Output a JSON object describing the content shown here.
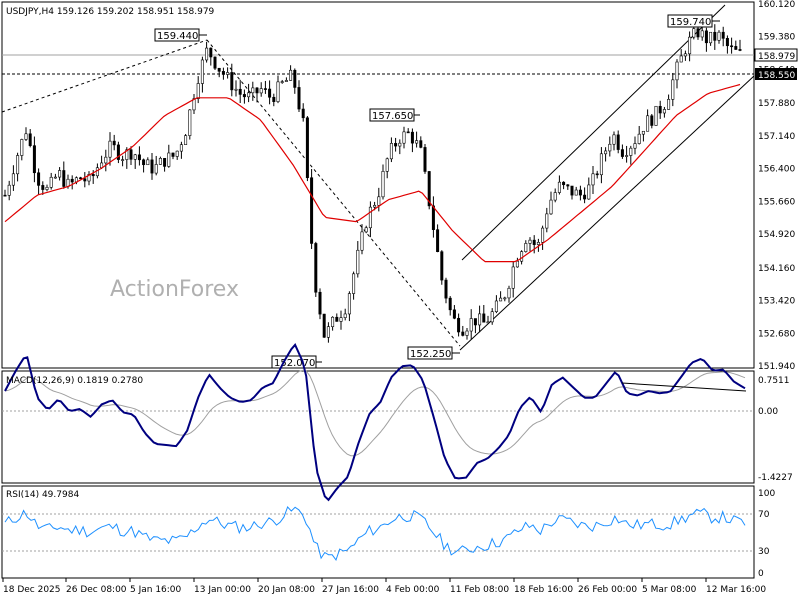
{
  "chart_data": [
    {
      "type": "candlestick",
      "symbol_line": "USDJPY,H4  159.126 159.202 158.951 158.979",
      "watermark": "ActionForex",
      "ylim": [
        151.94,
        160.12
      ],
      "y_ticks": [
        "160.120",
        "159.380",
        "158.640",
        "157.880",
        "157.140",
        "156.400",
        "155.660",
        "154.920",
        "154.160",
        "153.420",
        "152.680",
        "151.940"
      ],
      "current_price": "158.979",
      "support_level": "158.550",
      "annotations": [
        {
          "text": "159.440",
          "x": "13 Jan",
          "value": 159.44
        },
        {
          "text": "152.070",
          "x": "26 Jan",
          "value": 152.07
        },
        {
          "text": "157.650",
          "x": "5 Feb",
          "value": 157.65
        },
        {
          "text": "152.250",
          "x": "11 Feb",
          "value": 152.25
        },
        {
          "text": "159.740",
          "x": "10 Mar",
          "value": 159.74
        }
      ],
      "close_path": [
        [
          "18 Dec",
          155.8
        ],
        [
          "19 Dec",
          156.6
        ],
        [
          "20 Dec",
          157.3
        ],
        [
          "22 Dec",
          156.2
        ],
        [
          "23 Dec",
          155.9
        ],
        [
          "24 Dec",
          156.3
        ],
        [
          "25 Dec",
          156.0
        ],
        [
          "26 Dec",
          156.2
        ],
        [
          "29 Dec",
          156.1
        ],
        [
          "30 Dec",
          156.6
        ],
        [
          "31 Dec",
          156.9
        ],
        [
          "1 Jan",
          156.7
        ],
        [
          "2 Jan",
          156.8
        ],
        [
          "5 Jan",
          156.5
        ],
        [
          "6 Jan",
          156.4
        ],
        [
          "7 Jan",
          156.6
        ],
        [
          "8 Jan",
          156.7
        ],
        [
          "9 Jan",
          157.3
        ],
        [
          "12 Jan",
          158.4
        ],
        [
          "13 Jan",
          159.1
        ],
        [
          "14 Jan",
          158.7
        ],
        [
          "15 Jan",
          158.4
        ],
        [
          "16 Jan",
          158.1
        ],
        [
          "19 Jan",
          158.0
        ],
        [
          "20 Jan",
          158.2
        ],
        [
          "21 Jan",
          158.0
        ],
        [
          "22 Jan",
          158.3
        ],
        [
          "23 Jan",
          158.5
        ],
        [
          "24 Jan",
          157.4
        ],
        [
          "26 Jan",
          154.0
        ],
        [
          "27 Jan",
          152.6
        ],
        [
          "28 Jan",
          153.0
        ],
        [
          "29 Jan",
          153.3
        ],
        [
          "30 Jan",
          154.3
        ],
        [
          "1 Feb",
          155.3
        ],
        [
          "2 Feb",
          155.8
        ],
        [
          "3 Feb",
          156.7
        ],
        [
          "4 Feb",
          157.1
        ],
        [
          "5 Feb",
          157.2
        ],
        [
          "6 Feb",
          156.8
        ],
        [
          "8 Feb",
          155.4
        ],
        [
          "9 Feb",
          153.9
        ],
        [
          "10 Feb",
          153.0
        ],
        [
          "11 Feb",
          152.8
        ],
        [
          "12 Feb",
          153.0
        ],
        [
          "13 Feb",
          152.9
        ],
        [
          "14 Feb",
          153.2
        ],
        [
          "16 Feb",
          153.6
        ],
        [
          "17 Feb",
          154.4
        ],
        [
          "18 Feb",
          154.9
        ],
        [
          "19 Feb",
          154.6
        ],
        [
          "20 Feb",
          155.6
        ],
        [
          "23 Feb",
          156.0
        ],
        [
          "24 Feb",
          155.9
        ],
        [
          "25 Feb",
          155.8
        ],
        [
          "26 Feb",
          156.0
        ],
        [
          "27 Feb",
          156.6
        ],
        [
          "2 Mar",
          157.2
        ],
        [
          "3 Mar",
          156.8
        ],
        [
          "4 Mar",
          157.0
        ],
        [
          "5 Mar",
          157.4
        ],
        [
          "6 Mar",
          157.6
        ],
        [
          "8 Mar",
          157.9
        ],
        [
          "9 Mar",
          158.6
        ],
        [
          "10 Mar",
          159.2
        ],
        [
          "11 Mar",
          159.5
        ],
        [
          "12 Mar",
          159.3
        ],
        [
          "13 Mar",
          159.4
        ],
        [
          "14 Mar",
          159.1
        ],
        [
          "16 Mar",
          158.98
        ]
      ],
      "ma_path": [
        [
          "18 Dec",
          155.2
        ],
        [
          "25 Dec",
          155.8
        ],
        [
          "31 Dec",
          156.0
        ],
        [
          "7 Jan",
          156.4
        ],
        [
          "12 Jan",
          156.9
        ],
        [
          "14 Jan",
          157.6
        ],
        [
          "19 Jan",
          158.0
        ],
        [
          "22 Jan",
          158.0
        ],
        [
          "24 Jan",
          157.5
        ],
        [
          "27 Jan",
          156.5
        ],
        [
          "30 Jan",
          155.3
        ],
        [
          "3 Feb",
          155.2
        ],
        [
          "5 Feb",
          155.7
        ],
        [
          "8 Feb",
          155.9
        ],
        [
          "11 Feb",
          155.0
        ],
        [
          "14 Feb",
          154.3
        ],
        [
          "18 Feb",
          154.3
        ],
        [
          "23 Feb",
          154.8
        ],
        [
          "27 Feb",
          155.4
        ],
        [
          "4 Mar",
          156.0
        ],
        [
          "8 Mar",
          156.8
        ],
        [
          "11 Mar",
          157.6
        ],
        [
          "14 Mar",
          158.1
        ],
        [
          "16 Mar",
          158.3
        ]
      ]
    },
    {
      "type": "line",
      "title": "MACD(12,26,9) 0.1819 0.2780",
      "ylim": [
        -1.55,
        0.85
      ],
      "y_ticks": [
        "0.7511",
        "0.00",
        "-1.4227"
      ]
    },
    {
      "type": "line",
      "title": "RSI(14) 49.7984",
      "ylim": [
        0,
        100
      ],
      "y_ticks": [
        "100",
        "70",
        "30",
        "0"
      ],
      "levels": [
        70,
        30
      ]
    }
  ],
  "x_ticks": [
    "18 Dec 2025",
    "26 Dec 08:00",
    "5 Jan 16:00",
    "13 Jan 00:00",
    "20 Jan 08:00",
    "27 Jan 16:00",
    "4 Feb 00:00",
    "11 Feb 08:00",
    "18 Feb 16:00",
    "26 Feb 00:00",
    "5 Mar 08:00",
    "12 Mar 16:00"
  ],
  "colors": {
    "candle": "#000000",
    "ma": "#e00000",
    "macd": "#000080",
    "signal": "#a0a0a0",
    "rsi": "#1e90ff"
  }
}
